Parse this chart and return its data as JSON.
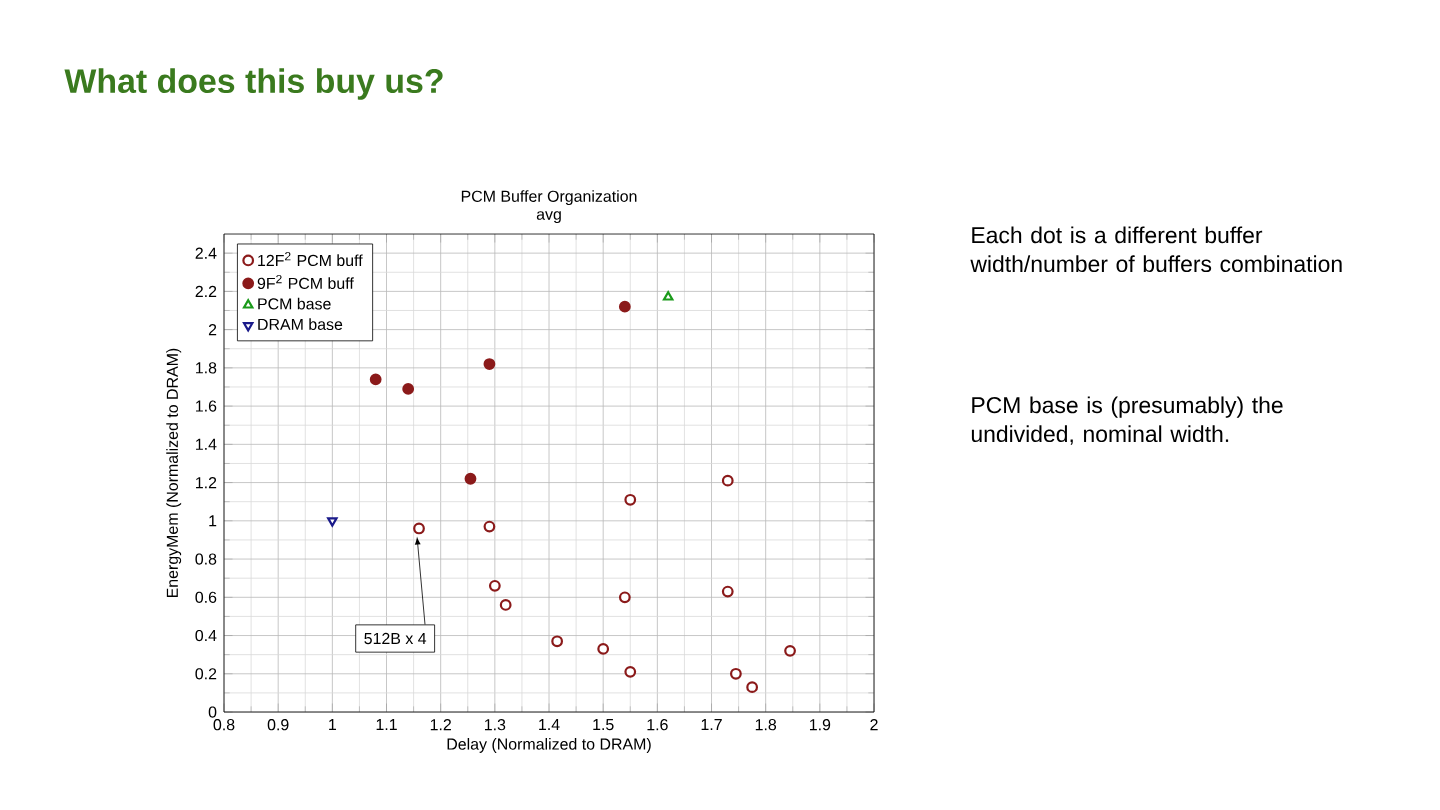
{
  "chart_data": {
    "type": "scatter",
    "title": "PCM Buffer Organization",
    "subtitle": "avg",
    "xlabel": "Delay (Normalized to DRAM)",
    "ylabel": "EnergyMem (Normalized to DRAM)",
    "xlim": [
      0.8,
      2
    ],
    "xticks": [
      0.8,
      0.9,
      1,
      1.1,
      1.2,
      1.3,
      1.4,
      1.5,
      1.6,
      1.7,
      1.8,
      1.9,
      2
    ],
    "ylim": [
      0,
      2.5
    ],
    "yticks": [
      0,
      0.2,
      0.4,
      0.6,
      0.8,
      1,
      1.2,
      1.4,
      1.6,
      1.8,
      2,
      2.2,
      2.4
    ],
    "grid": true,
    "legend": "top left",
    "series": [
      {
        "name": "12F$^{2}$ PCM buff",
        "color": "#8b1a1a",
        "marker": "circle",
        "x": [
          1.16,
          1.29,
          1.3,
          1.32,
          1.415,
          1.5,
          1.54,
          1.55,
          1.55,
          1.73,
          1.73,
          1.745,
          1.775,
          1.845
        ],
        "values": [
          0.96,
          0.97,
          0.66,
          0.56,
          0.37,
          0.33,
          0.6,
          1.11,
          0.21,
          1.21,
          0.63,
          0.2,
          0.13,
          0.32
        ]
      },
      {
        "name": "9F$^{2}$ PCM buff",
        "color": "#8b1a1a",
        "marker": "circle",
        "x": [
          1.08,
          1.14,
          1.29,
          1.255,
          1.54
        ],
        "values": [
          1.74,
          1.69,
          1.82,
          1.22,
          2.12
        ]
      },
      {
        "name": "PCM base",
        "color": "#1a9a1a",
        "marker": "triangle",
        "x": [
          1.62
        ],
        "values": [
          2.17
        ]
      },
      {
        "name": "DRAM base",
        "color": "#1a1a8a",
        "marker": "triangle down",
        "x": [
          1.0
        ],
        "values": [
          1.0
        ]
      }
    ],
    "annotations": [
      "What does this buy us?",
      {
        "text": "512B x 4",
        "x": 1.16,
        "y": 0.96
      },
      "Each dot is a different buffer width/number of buffers combination",
      "PCM base is (presumably) the undivided, nominal width."
    ]
  }
}
